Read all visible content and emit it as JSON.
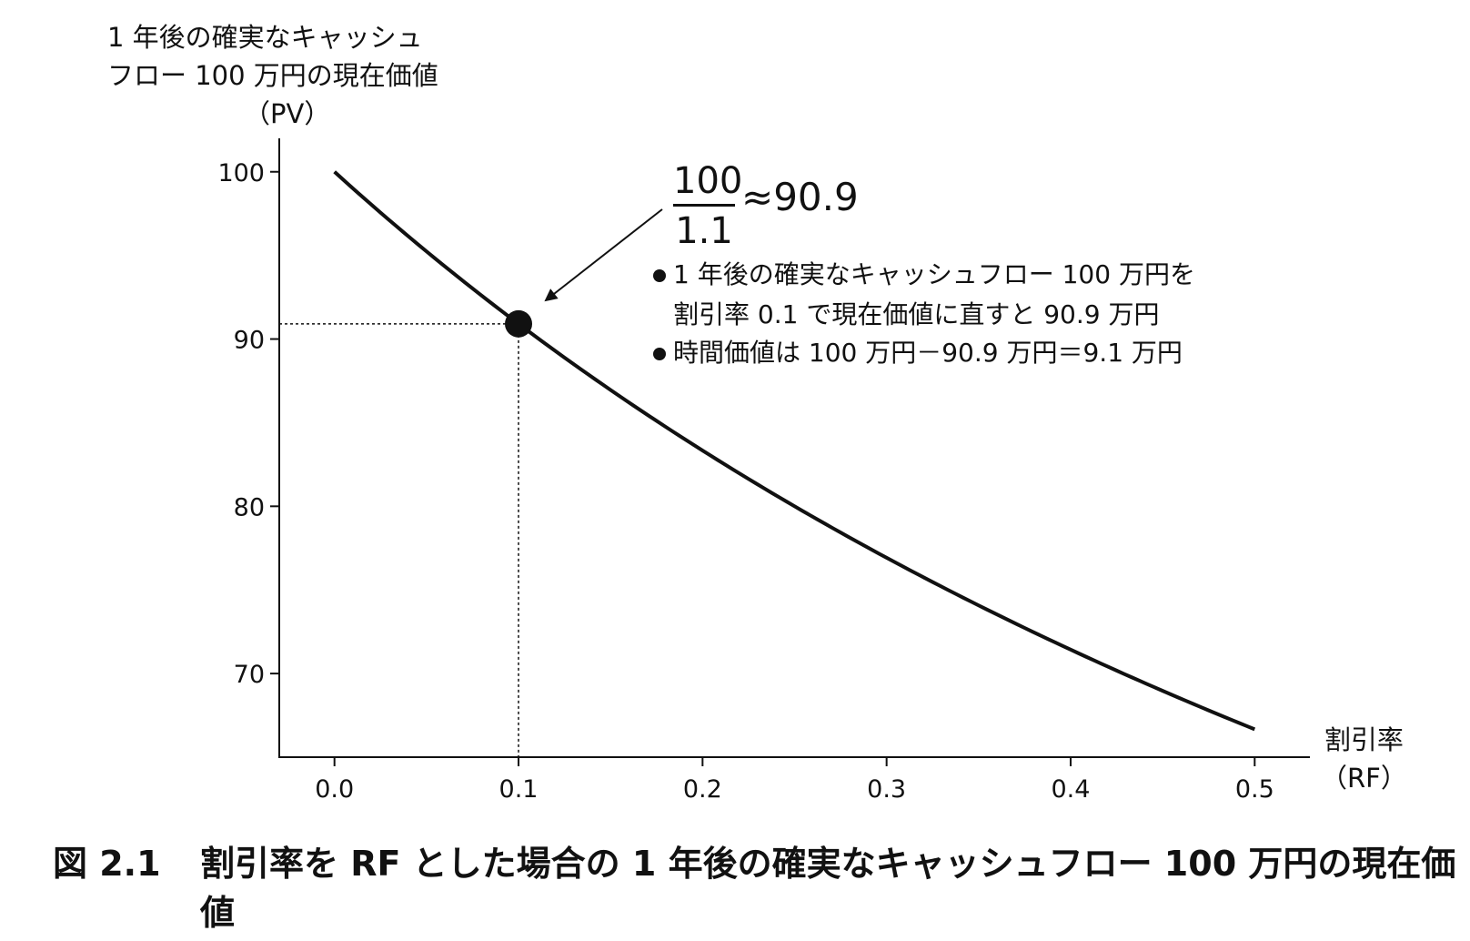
{
  "chart_data": {
    "type": "line",
    "ylabel": [
      "1 年後の確実なキャッシュ",
      "フロー 100 万円の現在価値",
      "（PV）"
    ],
    "xlabel": [
      "割引率",
      "（RF）"
    ],
    "x_ticks": [
      "0.0",
      "0.1",
      "0.2",
      "0.3",
      "0.4",
      "0.5"
    ],
    "y_ticks": [
      "100",
      "90",
      "80",
      "70"
    ],
    "xlim": [
      -0.03,
      0.53
    ],
    "ylim": [
      65,
      102
    ],
    "series": [
      {
        "formula": "100/(1+x)",
        "x": [
          0.0,
          0.05,
          0.1,
          0.15,
          0.2,
          0.25,
          0.3,
          0.35,
          0.4,
          0.45,
          0.5
        ],
        "values": [
          100.0,
          95.24,
          90.91,
          86.96,
          83.33,
          80.0,
          76.92,
          74.07,
          71.43,
          68.97,
          66.67
        ]
      }
    ],
    "highlight_point": {
      "x": 0.1,
      "y": 90.91
    },
    "annotation": {
      "fraction_numerator": "100",
      "fraction_denominator": "1.1",
      "approx": "≈90.9",
      "bullets": [
        [
          "1 年後の確実なキャッシュフロー 100 万円を",
          "割引率 0.1 で現在価値に直すと 90.9 万円"
        ],
        [
          "時間価値は 100 万円－90.9 万円＝9.1 万円"
        ]
      ]
    }
  },
  "caption": {
    "number": "図 2.1",
    "text": "割引率を RF とした場合の 1 年後の確実なキャッシュフロー 100 万円の現在価値"
  }
}
